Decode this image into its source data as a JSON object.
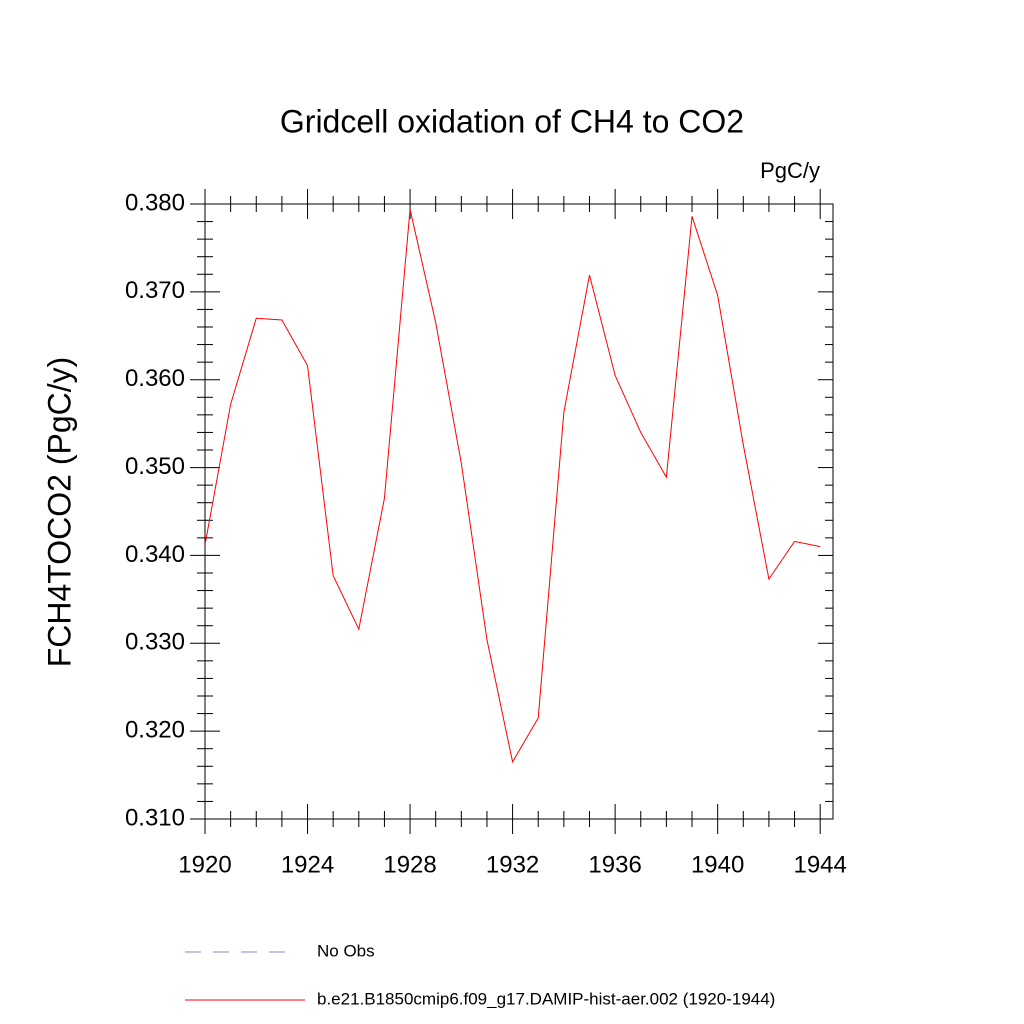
{
  "chart_data": {
    "type": "line",
    "title": "Gridcell oxidation of CH4 to CO2",
    "units": "PgC/y",
    "y_label": "FCH4TOCO2  (PgC/y)",
    "x": [
      1920,
      1921,
      1922,
      1923,
      1924,
      1925,
      1926,
      1927,
      1928,
      1929,
      1930,
      1931,
      1932,
      1933,
      1934,
      1935,
      1936,
      1937,
      1938,
      1939,
      1940,
      1941,
      1942,
      1943,
      1944
    ],
    "series": [
      {
        "name": "No Obs",
        "color": "#8a8acb",
        "dashed": true,
        "values": [
          null,
          null,
          null,
          null,
          null,
          null,
          null,
          null,
          null,
          null,
          null,
          null,
          null,
          null,
          null,
          null,
          null,
          null,
          null,
          null,
          null,
          null,
          null,
          null,
          null
        ]
      },
      {
        "name": "b.e21.B1850cmip6.f09_g17.DAMIP-hist-aer.002 (1920-1944)",
        "color": "#ff0000",
        "dashed": false,
        "values": [
          0.3412,
          0.3572,
          0.367,
          0.3668,
          0.3616,
          0.3377,
          0.3316,
          0.3465,
          0.3794,
          0.3665,
          0.3505,
          0.3304,
          0.3165,
          0.3215,
          0.3563,
          0.3719,
          0.3605,
          0.354,
          0.3489,
          0.3786,
          0.3696,
          0.3526,
          0.3373,
          0.3416,
          0.341
        ]
      }
    ],
    "xlim": [
      1920,
      1944.5
    ],
    "xticks": [
      1920,
      1924,
      1928,
      1932,
      1936,
      1940,
      1944
    ],
    "ylim": [
      0.31,
      0.38
    ],
    "yticks": [
      {
        "value": 0.31,
        "label": "0.310"
      },
      {
        "value": 0.32,
        "label": "0.320"
      },
      {
        "value": 0.33,
        "label": "0.330"
      },
      {
        "value": 0.34,
        "label": "0.340"
      },
      {
        "value": 0.35,
        "label": "0.350"
      },
      {
        "value": 0.36,
        "label": "0.360"
      },
      {
        "value": 0.37,
        "label": "0.370"
      },
      {
        "value": 0.38,
        "label": "0.380"
      }
    ]
  }
}
